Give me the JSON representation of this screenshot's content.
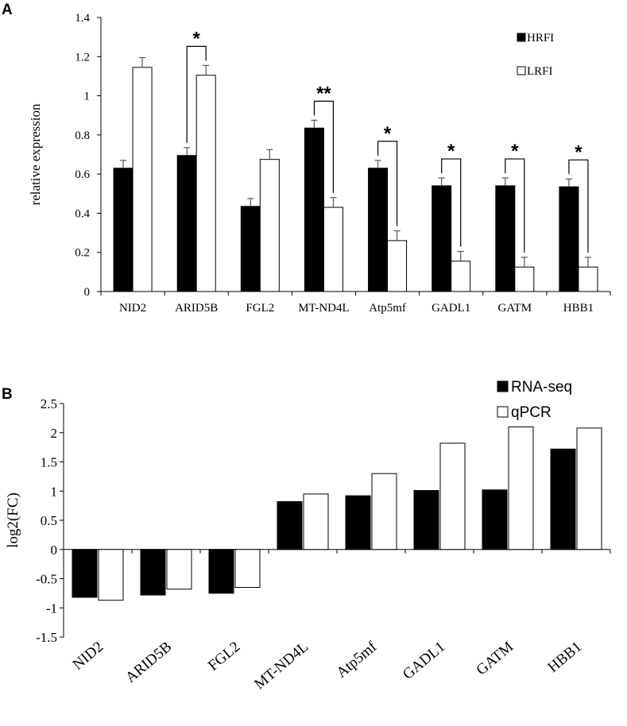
{
  "chart_data": [
    {
      "panel": "A",
      "type": "bar",
      "ylabel": "relative expression",
      "ylim": [
        0,
        1.4
      ],
      "yticks": [
        "0",
        "0.2",
        "0.4",
        "0.6",
        "0.8",
        "1",
        "1.2",
        "1.4"
      ],
      "categories": [
        "NID2",
        "ARID5B",
        "FGL2",
        "MT-ND4L",
        "Atp5mf",
        "GADL1",
        "GATM",
        "HBB1"
      ],
      "series": [
        {
          "name": "HRFI",
          "color": "#000000",
          "values": [
            0.63,
            0.695,
            0.435,
            0.835,
            0.63,
            0.54,
            0.54,
            0.535
          ],
          "errors": [
            0.04,
            0.04,
            0.04,
            0.04,
            0.04,
            0.04,
            0.04,
            0.04
          ]
        },
        {
          "name": "LRFI",
          "color": "#ffffff",
          "values": [
            1.145,
            1.105,
            0.675,
            0.43,
            0.26,
            0.155,
            0.125,
            0.125
          ],
          "errors": [
            0.05,
            0.05,
            0.05,
            0.05,
            0.05,
            0.05,
            0.05,
            0.05
          ]
        }
      ],
      "significance": [
        "",
        "*",
        "",
        "**",
        "*",
        "*",
        "*",
        "*"
      ]
    },
    {
      "panel": "B",
      "type": "bar",
      "ylabel": "log2(FC)",
      "ylim": [
        -1.5,
        2.5
      ],
      "yticks": [
        "-1.5",
        "-1",
        "-0.5",
        "0",
        "0.5",
        "1",
        "1.5",
        "2",
        "2.5"
      ],
      "categories": [
        "NID2",
        "ARID5B",
        "FGL2",
        "MT-ND4L",
        "Atp5mf",
        "GADL1",
        "GATM",
        "HBB1"
      ],
      "series": [
        {
          "name": "RNA-seq",
          "color": "#000000",
          "values": [
            -0.82,
            -0.78,
            -0.75,
            0.82,
            0.92,
            1.01,
            1.02,
            1.72
          ]
        },
        {
          "name": "qPCR",
          "color": "#ffffff",
          "values": [
            -0.87,
            -0.68,
            -0.65,
            0.95,
            1.3,
            1.82,
            2.1,
            2.08
          ]
        }
      ]
    }
  ]
}
